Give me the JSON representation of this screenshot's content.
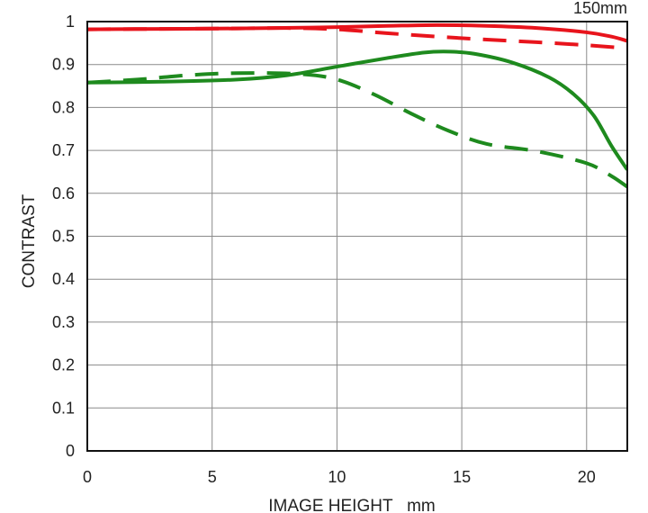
{
  "chart_data": {
    "type": "line",
    "title": "150mm",
    "xlabel": "IMAGE HEIGHT   mm",
    "ylabel": "CONTRAST",
    "xlim": [
      0,
      21.63
    ],
    "ylim": [
      0,
      1
    ],
    "xticks": [
      {
        "value": 0,
        "label": "0"
      },
      {
        "value": 5,
        "label": "5"
      },
      {
        "value": 10,
        "label": "10"
      },
      {
        "value": 15,
        "label": "15"
      },
      {
        "value": 20,
        "label": "20"
      }
    ],
    "yticks": [
      {
        "value": 0,
        "label": "0"
      },
      {
        "value": 0.1,
        "label": "0.1"
      },
      {
        "value": 0.2,
        "label": "0.2"
      },
      {
        "value": 0.3,
        "label": "0.3"
      },
      {
        "value": 0.4,
        "label": "0.4"
      },
      {
        "value": 0.5,
        "label": "0.5"
      },
      {
        "value": 0.6,
        "label": "0.6"
      },
      {
        "value": 0.7,
        "label": "0.7"
      },
      {
        "value": 0.8,
        "label": "0.8"
      },
      {
        "value": 0.9,
        "label": "0.9"
      },
      {
        "value": 1,
        "label": "1"
      }
    ],
    "grid": true,
    "series": [
      {
        "color": "#e8141c",
        "dash": "solid",
        "points": [
          [
            0,
            0.982
          ],
          [
            3,
            0.983
          ],
          [
            6,
            0.984
          ],
          [
            9,
            0.986
          ],
          [
            12,
            0.99
          ],
          [
            14,
            0.992
          ],
          [
            16,
            0.99
          ],
          [
            18,
            0.985
          ],
          [
            20,
            0.975
          ],
          [
            21,
            0.965
          ],
          [
            21.63,
            0.955
          ]
        ]
      },
      {
        "color": "#e8141c",
        "dash": "dashed",
        "points": [
          [
            0,
            0.982
          ],
          [
            3,
            0.983
          ],
          [
            6,
            0.984
          ],
          [
            8,
            0.985
          ],
          [
            10,
            0.982
          ],
          [
            12,
            0.973
          ],
          [
            14,
            0.965
          ],
          [
            16,
            0.958
          ],
          [
            18,
            0.952
          ],
          [
            20,
            0.945
          ],
          [
            21.63,
            0.938
          ]
        ]
      },
      {
        "color": "#1e8a1e",
        "dash": "solid",
        "points": [
          [
            0,
            0.858
          ],
          [
            3,
            0.86
          ],
          [
            6,
            0.865
          ],
          [
            8,
            0.875
          ],
          [
            10,
            0.895
          ],
          [
            12,
            0.915
          ],
          [
            13.5,
            0.928
          ],
          [
            14.5,
            0.93
          ],
          [
            15.5,
            0.925
          ],
          [
            17,
            0.905
          ],
          [
            18.5,
            0.87
          ],
          [
            19.5,
            0.83
          ],
          [
            20.3,
            0.78
          ],
          [
            21,
            0.71
          ],
          [
            21.63,
            0.655
          ]
        ]
      },
      {
        "color": "#1e8a1e",
        "dash": "dashed",
        "points": [
          [
            0,
            0.858
          ],
          [
            2,
            0.865
          ],
          [
            4,
            0.875
          ],
          [
            6,
            0.88
          ],
          [
            8.5,
            0.878
          ],
          [
            10,
            0.865
          ],
          [
            11.5,
            0.83
          ],
          [
            13,
            0.785
          ],
          [
            14.5,
            0.745
          ],
          [
            16,
            0.715
          ],
          [
            18,
            0.698
          ],
          [
            20,
            0.67
          ],
          [
            21,
            0.64
          ],
          [
            21.63,
            0.615
          ]
        ]
      }
    ]
  }
}
